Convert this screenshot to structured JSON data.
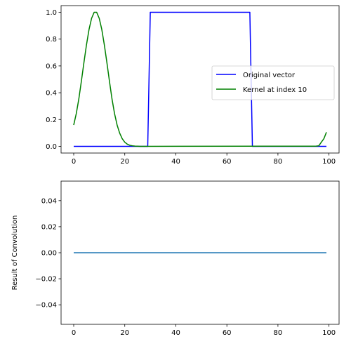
{
  "chart_data": [
    {
      "type": "line",
      "xlim": [
        -4.95,
        103.95
      ],
      "ylim": [
        -0.05,
        1.05
      ],
      "x_ticks": [
        0,
        20,
        40,
        60,
        80,
        100
      ],
      "y_ticks": [
        0.0,
        0.2,
        0.4,
        0.6,
        0.8,
        1.0
      ],
      "x_tick_labels": [
        "0",
        "20",
        "40",
        "60",
        "80",
        "100"
      ],
      "y_tick_labels": [
        "0.0",
        "0.2",
        "0.4",
        "0.6",
        "0.8",
        "1.0"
      ],
      "xlabel": "",
      "ylabel": "",
      "legend": {
        "position": "center-right",
        "entries": [
          {
            "label": "Original vector",
            "color": "#0000ff"
          },
          {
            "label": "Kernel at index 10",
            "color": "#008000"
          }
        ]
      },
      "series": [
        {
          "name": "Original vector",
          "color": "#0000ff",
          "x": [
            0,
            29,
            30,
            69,
            70,
            99
          ],
          "y": [
            0,
            0,
            1,
            1,
            0,
            0
          ]
        },
        {
          "name": "Kernel at index 10",
          "color": "#008000",
          "x": [
            0,
            1,
            2,
            3,
            4,
            5,
            6,
            7,
            8,
            9,
            10,
            11,
            12,
            13,
            14,
            15,
            16,
            17,
            18,
            19,
            20,
            21,
            22,
            23,
            24,
            25,
            26,
            94,
            95,
            96,
            97,
            98,
            99
          ],
          "y": [
            0.159,
            0.244,
            0.353,
            0.486,
            0.625,
            0.757,
            0.872,
            0.955,
            1.0,
            1.0,
            0.955,
            0.872,
            0.757,
            0.625,
            0.486,
            0.353,
            0.244,
            0.159,
            0.099,
            0.057,
            0.031,
            0.016,
            0.008,
            0.004,
            0.002,
            0.001,
            0.0,
            0.001,
            0.002,
            0.004,
            0.031,
            0.057,
            0.105
          ]
        }
      ]
    },
    {
      "type": "line",
      "xlim": [
        -4.95,
        103.95
      ],
      "ylim": [
        -0.055,
        0.055
      ],
      "x_ticks": [
        0,
        20,
        40,
        60,
        80,
        100
      ],
      "y_ticks": [
        -0.04,
        -0.02,
        0.0,
        0.02,
        0.04
      ],
      "x_tick_labels": [
        "0",
        "20",
        "40",
        "60",
        "80",
        "100"
      ],
      "y_tick_labels": [
        "−0.04",
        "−0.02",
        "0.00",
        "0.02",
        "0.04"
      ],
      "xlabel": "",
      "ylabel": "Result of Convolution",
      "series": [
        {
          "color": "#1f77b4",
          "x": [
            0,
            99
          ],
          "y": [
            0,
            0
          ]
        }
      ]
    }
  ]
}
